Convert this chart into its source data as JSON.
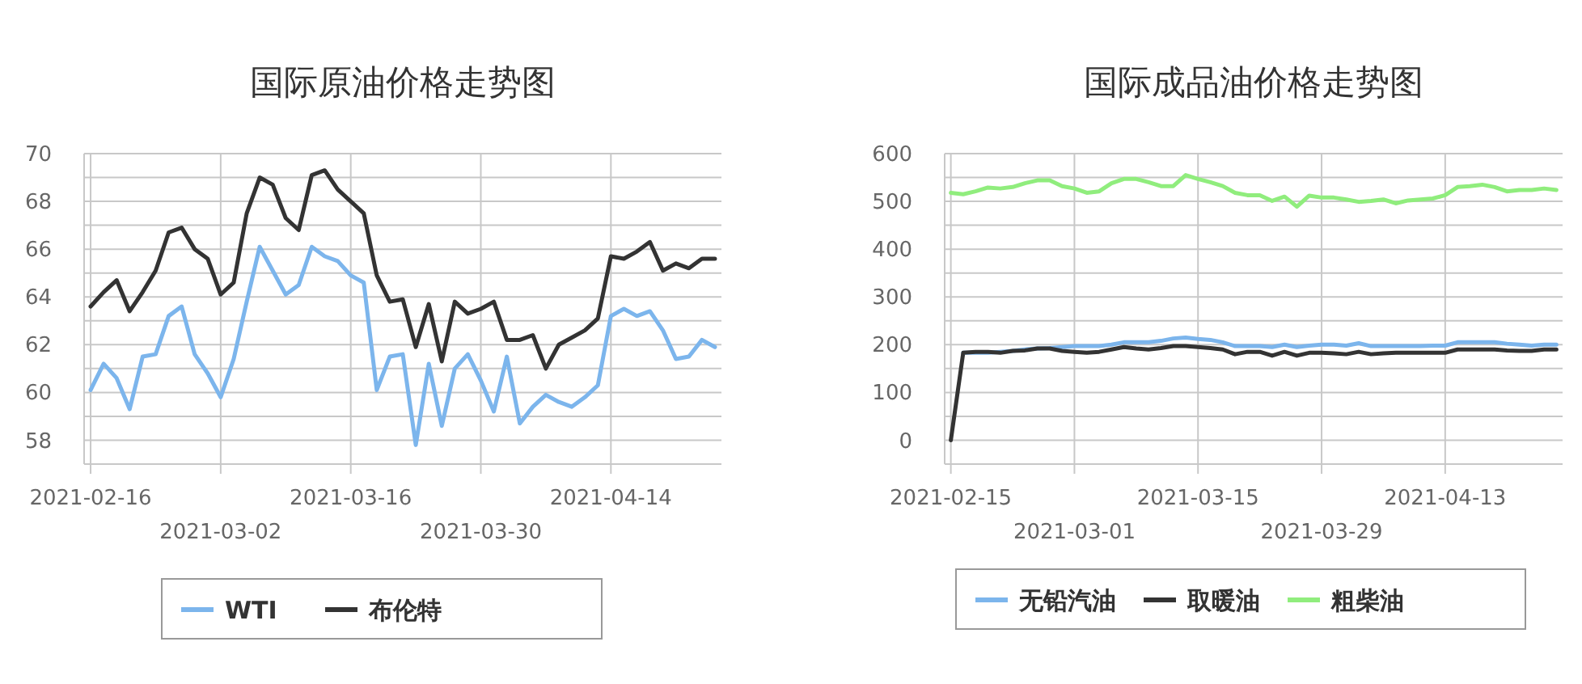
{
  "chart_data": [
    {
      "type": "line",
      "title": "国际原油价格走势图",
      "categories": [
        "2021-02-16",
        null,
        null,
        null,
        null,
        null,
        null,
        null,
        null,
        null,
        "2021-03-02",
        null,
        null,
        null,
        null,
        null,
        null,
        null,
        null,
        null,
        "2021-03-16",
        null,
        null,
        null,
        null,
        null,
        null,
        null,
        null,
        null,
        "2021-03-30",
        null,
        null,
        null,
        null,
        null,
        null,
        null,
        null,
        null,
        "2021-04-14",
        null,
        null,
        null,
        null,
        null,
        null,
        null,
        null
      ],
      "series": [
        {
          "name": "WTI",
          "color": "#7cb5ec",
          "values": [
            60.1,
            61.2,
            60.6,
            59.3,
            61.5,
            61.6,
            63.2,
            63.6,
            61.6,
            60.8,
            59.8,
            61.4,
            63.8,
            66.1,
            65.1,
            64.1,
            64.5,
            66.1,
            65.7,
            65.5,
            64.9,
            64.6,
            60.1,
            61.5,
            61.6,
            57.8,
            61.2,
            58.6,
            61.0,
            61.6,
            60.5,
            59.2,
            61.5,
            58.7,
            59.4,
            59.9,
            59.6,
            59.4,
            59.8,
            60.3,
            63.2,
            63.5,
            63.2,
            63.4,
            62.6,
            61.4,
            61.5,
            62.2,
            61.9
          ]
        },
        {
          "name": "布伦特",
          "color": "#333333",
          "values": [
            63.6,
            64.2,
            64.7,
            63.4,
            64.2,
            65.1,
            66.7,
            66.9,
            66.0,
            65.6,
            64.1,
            64.6,
            67.5,
            69.0,
            68.7,
            67.3,
            66.8,
            69.1,
            69.3,
            68.5,
            68.0,
            67.5,
            64.9,
            63.8,
            63.9,
            61.9,
            63.7,
            61.3,
            63.8,
            63.3,
            63.5,
            63.8,
            62.2,
            62.2,
            62.4,
            61.0,
            62.0,
            62.3,
            62.6,
            63.1,
            65.7,
            65.6,
            65.9,
            66.3,
            65.1,
            65.4,
            65.2,
            65.6,
            65.6
          ]
        }
      ],
      "ylim": [
        57,
        70
      ],
      "yticks": [
        {
          "value": 57,
          "label": null
        },
        58,
        {
          "value": 59,
          "label": null
        },
        60,
        {
          "value": 61,
          "label": null
        },
        62,
        {
          "value": 63,
          "label": null
        },
        64,
        {
          "value": 65,
          "label": null
        },
        66,
        {
          "value": 67,
          "label": null
        },
        68,
        {
          "value": 69,
          "label": null
        },
        70
      ],
      "grid": true,
      "legend": "bottom"
    },
    {
      "type": "line",
      "title": "国际成品油价格走势图",
      "categories": [
        "2021-02-15",
        null,
        null,
        null,
        null,
        null,
        null,
        null,
        null,
        null,
        "2021-03-01",
        null,
        null,
        null,
        null,
        null,
        null,
        null,
        null,
        null,
        "2021-03-15",
        null,
        null,
        null,
        null,
        null,
        null,
        null,
        null,
        null,
        "2021-03-29",
        null,
        null,
        null,
        null,
        null,
        null,
        null,
        null,
        null,
        "2021-04-13",
        null,
        null,
        null,
        null,
        null,
        null,
        null,
        null,
        null
      ],
      "series": [
        {
          "name": "无铅汽油",
          "color": "#7cb5ec",
          "values": [
            null,
            183,
            183,
            183,
            185,
            187,
            190,
            192,
            193,
            195,
            197,
            197,
            197,
            200,
            205,
            205,
            205,
            208,
            213,
            215,
            212,
            210,
            205,
            197,
            197,
            197,
            195,
            200,
            195,
            198,
            200,
            200,
            198,
            203,
            197,
            197,
            197,
            197,
            197,
            198,
            198,
            205,
            205,
            205,
            205,
            202,
            200,
            198,
            200,
            200
          ]
        },
        {
          "name": "取暖油",
          "color": "#333333",
          "values": [
            0,
            183,
            185,
            185,
            183,
            187,
            188,
            192,
            192,
            187,
            185,
            183,
            185,
            190,
            195,
            192,
            190,
            193,
            197,
            197,
            195,
            193,
            190,
            180,
            185,
            185,
            177,
            185,
            177,
            183,
            183,
            182,
            180,
            185,
            180,
            182,
            183,
            183,
            183,
            183,
            183,
            190,
            190,
            190,
            190,
            188,
            187,
            187,
            190,
            190
          ]
        },
        {
          "name": "粗柴油",
          "color": "#90ed7d",
          "values": [
            518,
            515,
            521,
            529,
            527,
            530,
            538,
            544,
            544,
            532,
            527,
            518,
            521,
            538,
            547,
            547,
            540,
            532,
            532,
            555,
            547,
            540,
            532,
            518,
            513,
            513,
            501,
            510,
            489,
            512,
            508,
            508,
            504,
            499,
            501,
            504,
            496,
            502,
            504,
            506,
            513,
            530,
            532,
            535,
            530,
            521,
            524,
            524,
            527,
            524
          ]
        }
      ],
      "ylim": [
        -50,
        600
      ],
      "yticks": [
        {
          "value": -50,
          "label": null
        },
        0,
        {
          "value": 50,
          "label": null
        },
        100,
        {
          "value": 150,
          "label": null
        },
        200,
        {
          "value": 250,
          "label": null
        },
        300,
        {
          "value": 350,
          "label": null
        },
        400,
        {
          "value": 450,
          "label": null
        },
        500,
        {
          "value": 550,
          "label": null
        },
        600
      ],
      "grid": true,
      "legend": "bottom"
    }
  ]
}
